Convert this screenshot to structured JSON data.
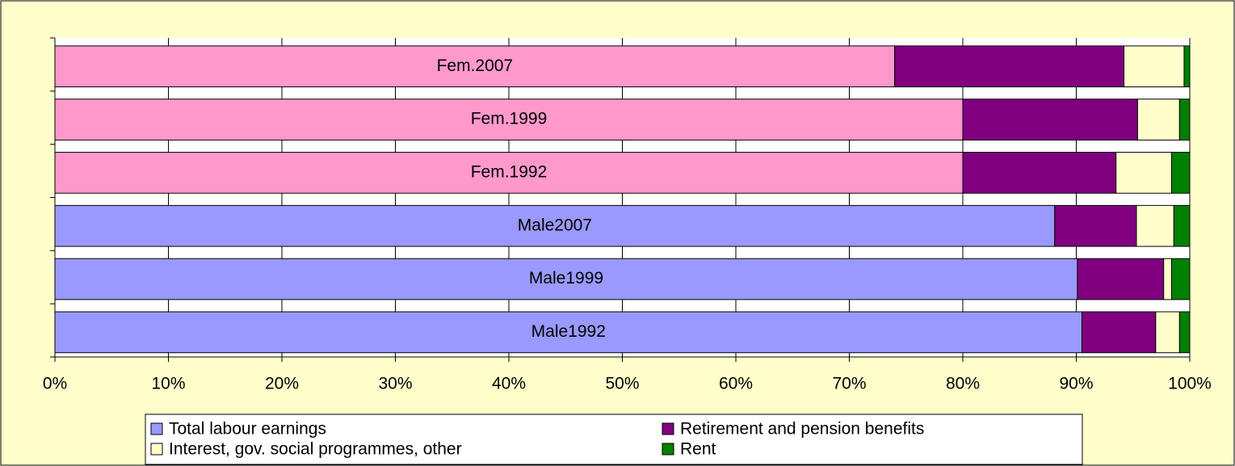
{
  "chart_data": {
    "type": "stacked-barh",
    "categories": [
      "Fem.2007",
      "Fem.1999",
      "Fem.1992",
      "Male2007",
      "Male1999",
      "Male1992"
    ],
    "series": [
      {
        "name": "Total labour earnings",
        "color": "#9999ff",
        "colors": [
          "#ff99cc",
          "#ff99cc",
          "#ff99cc",
          "#9999ff",
          "#9999ff",
          "#9999ff"
        ],
        "values": [
          74,
          80,
          80,
          88.1,
          90.1,
          90.5
        ]
      },
      {
        "name": "Retirement and pension benefits",
        "color": "#800080",
        "values": [
          20.2,
          15.4,
          13.5,
          7.2,
          7.6,
          6.5
        ]
      },
      {
        "name": "Interest, gov. social programmes, other",
        "color": "#ffffcc",
        "values": [
          5.3,
          3.7,
          4.9,
          3.3,
          0.7,
          2.1
        ]
      },
      {
        "name": "Rent",
        "color": "#008000",
        "values": [
          0.5,
          0.9,
          1.6,
          1.4,
          1.6,
          0.9
        ]
      }
    ],
    "xlim": [
      0,
      100
    ],
    "xticks": [
      {
        "value": 0,
        "label": "0%"
      },
      {
        "value": 10,
        "label": "10%"
      },
      {
        "value": 20,
        "label": "20%"
      },
      {
        "value": 30,
        "label": "30%"
      },
      {
        "value": 40,
        "label": "40%"
      },
      {
        "value": 50,
        "label": "50%"
      },
      {
        "value": 60,
        "label": "60%"
      },
      {
        "value": 70,
        "label": "70%"
      },
      {
        "value": 80,
        "label": "80%"
      },
      {
        "value": 90,
        "label": "90%"
      },
      {
        "value": 100,
        "label": "100%"
      }
    ],
    "grid": true
  }
}
